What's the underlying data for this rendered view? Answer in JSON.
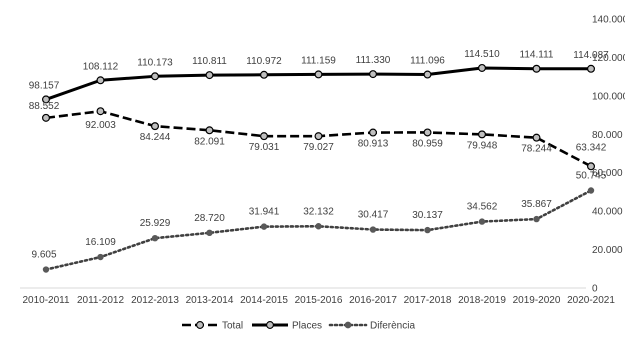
{
  "chart_data": {
    "type": "line",
    "title": "",
    "xlabel": "",
    "ylabel": "",
    "ylim": [
      0,
      140000
    ],
    "y_ticks": [
      0,
      20000,
      40000,
      60000,
      80000,
      100000,
      120000,
      140000
    ],
    "y_tick_labels": [
      "0",
      "20.000",
      "40.000",
      "60.000",
      "80.000",
      "100.000",
      "120.000",
      "140.000"
    ],
    "y_axis_side": "right",
    "grid": false,
    "legend": "bottom",
    "categories": [
      "2010-2011",
      "2011-2012",
      "2012-2013",
      "2013-2014",
      "2014-2015",
      "2015-2016",
      "2016-2017",
      "2017-2018",
      "2018-2019",
      "2019-2020",
      "2020-2021"
    ],
    "series": [
      {
        "name": "Total",
        "style": "dashed",
        "color": "#000000",
        "marker_fill": "#bfbfbf",
        "values": [
          88552,
          92003,
          84244,
          82091,
          79031,
          79027,
          80913,
          80959,
          79948,
          78244,
          63342
        ],
        "labels": [
          "88.552",
          "92.003",
          "84.244",
          "82.091",
          "79.031",
          "79.027",
          "80.913",
          "80.959",
          "79.948",
          "78.244",
          "63.342"
        ]
      },
      {
        "name": "Places",
        "style": "solid",
        "color": "#000000",
        "marker_fill": "#bfbfbf",
        "values": [
          98157,
          108112,
          110173,
          110811,
          110972,
          111159,
          111330,
          111096,
          114510,
          114111,
          114087
        ],
        "labels": [
          "98.157",
          "108.112",
          "110.173",
          "110.811",
          "110.972",
          "111.159",
          "111.330",
          "111.096",
          "114.510",
          "114.111",
          "114.087"
        ]
      },
      {
        "name": "Diferència",
        "style": "dotted",
        "color": "#404040",
        "marker_fill": "#595959",
        "values": [
          9605,
          16109,
          25929,
          28720,
          31941,
          32132,
          30417,
          30137,
          34562,
          35867,
          50745
        ],
        "labels": [
          "9.605",
          "16.109",
          "25.929",
          "28.720",
          "31.941",
          "32.132",
          "30.417",
          "30.137",
          "34.562",
          "35.867",
          "50.745"
        ]
      }
    ]
  }
}
